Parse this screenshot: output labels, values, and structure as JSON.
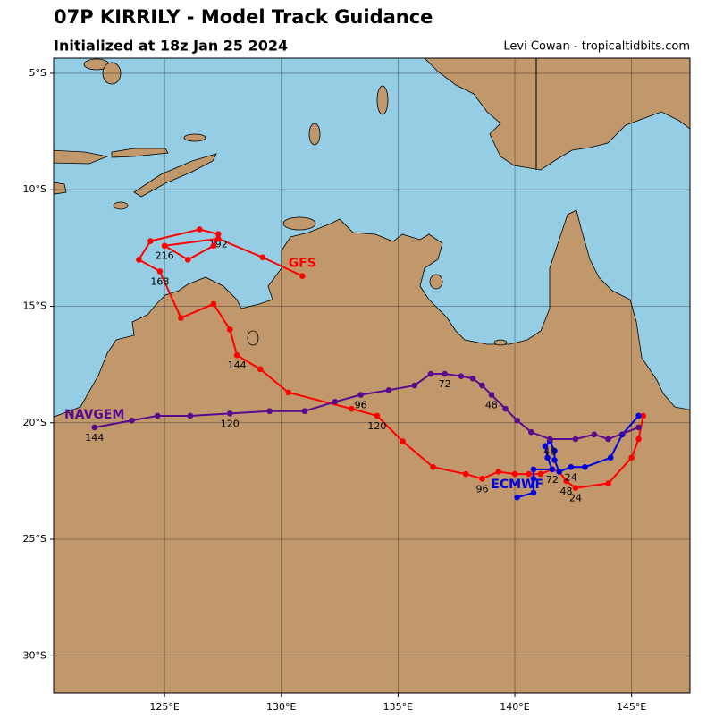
{
  "chart_data": {
    "type": "track-map",
    "title": "07P KIRRILY - Model Track Guidance",
    "subtitle": "Initialized at 18z Jan 25 2024",
    "credit": "Levi Cowan - tropicaltidbits.com",
    "xlim": [
      120.25,
      147.5
    ],
    "ylim": [
      -31.6,
      -4.35
    ],
    "xticks": [
      {
        "value": 125,
        "label": "125°E"
      },
      {
        "value": 130,
        "label": "130°E"
      },
      {
        "value": 135,
        "label": "135°E"
      },
      {
        "value": 140,
        "label": "140°E"
      },
      {
        "value": 145,
        "label": "145°E"
      }
    ],
    "yticks": [
      {
        "value": -5,
        "label": "5°S"
      },
      {
        "value": -10,
        "label": "10°S"
      },
      {
        "value": -15,
        "label": "15°S"
      },
      {
        "value": -20,
        "label": "20°S"
      },
      {
        "value": -25,
        "label": "25°S"
      },
      {
        "value": -30,
        "label": "30°S"
      }
    ],
    "grid": true,
    "series": [
      {
        "name": "GFS",
        "color": "#ff0000",
        "x": [
          145.5,
          145.3,
          145.0,
          144.0,
          142.6,
          142.2,
          141.9,
          141.6,
          141.1,
          140.6,
          140.0,
          139.3,
          138.6,
          137.9,
          136.5,
          135.2,
          134.1,
          133.0,
          130.3,
          129.1,
          128.1,
          127.8,
          127.1,
          125.7,
          124.8,
          123.9,
          124.4,
          126.5,
          127.3,
          127.1,
          126.0,
          125.0,
          127.3,
          129.2,
          130.9
        ],
        "values": [
          -19.7,
          -20.7,
          -21.5,
          -22.6,
          -22.8,
          -22.5,
          -22.1,
          -22.0,
          -22.2,
          -22.2,
          -22.2,
          -22.1,
          -22.4,
          -22.2,
          -21.9,
          -20.8,
          -19.7,
          -19.4,
          -18.7,
          -17.7,
          -17.1,
          -16.0,
          -14.9,
          -15.5,
          -13.5,
          -13.0,
          -12.2,
          -11.7,
          -11.9,
          -12.4,
          -13.0,
          -12.4,
          -12.1,
          -12.9,
          -13.7
        ],
        "hour_labels": [
          null,
          null,
          null,
          null,
          24,
          48,
          null,
          null,
          null,
          null,
          null,
          null,
          96,
          null,
          null,
          null,
          120,
          null,
          null,
          null,
          144,
          null,
          null,
          null,
          168,
          null,
          null,
          null,
          192,
          null,
          null,
          216,
          null,
          null,
          null
        ]
      },
      {
        "name": "ECMWF",
        "color": "#0000e0",
        "x": [
          145.3,
          144.6,
          144.1,
          143.0,
          142.4,
          141.9,
          141.7,
          141.7,
          141.5,
          141.3,
          141.4,
          141.6,
          140.8,
          140.8,
          140.8,
          140.1
        ],
        "values": [
          -19.7,
          -20.5,
          -21.5,
          -21.9,
          -21.9,
          -22.1,
          -21.6,
          -21.2,
          -20.8,
          -21.0,
          -21.5,
          -22.0,
          -22.0,
          -22.4,
          -23.0,
          -23.2
        ],
        "hour_labels": [
          null,
          null,
          null,
          null,
          24,
          null,
          null,
          null,
          48,
          null,
          null,
          72,
          null,
          null,
          null,
          null
        ]
      },
      {
        "name": "NAVGEM",
        "color": "#5a0a8c",
        "x": [
          145.3,
          144.0,
          143.4,
          142.6,
          141.5,
          140.7,
          140.1,
          139.6,
          139.0,
          138.6,
          138.2,
          137.7,
          137.0,
          136.4,
          135.7,
          134.6,
          133.4,
          132.3,
          131.0,
          129.5,
          127.8,
          126.1,
          124.7,
          123.6,
          122.0
        ],
        "values": [
          -20.2,
          -20.7,
          -20.5,
          -20.7,
          -20.7,
          -20.4,
          -19.9,
          -19.4,
          -18.8,
          -18.4,
          -18.1,
          -18.0,
          -17.9,
          -17.9,
          -18.4,
          -18.6,
          -18.8,
          -19.1,
          -19.5,
          -19.5,
          -19.6,
          -19.7,
          -19.7,
          -19.9,
          -20.2
        ],
        "hour_labels": [
          null,
          null,
          null,
          null,
          null,
          null,
          null,
          null,
          48,
          null,
          null,
          null,
          72,
          null,
          null,
          null,
          96,
          null,
          null,
          null,
          120,
          null,
          null,
          null,
          144
        ]
      }
    ]
  }
}
